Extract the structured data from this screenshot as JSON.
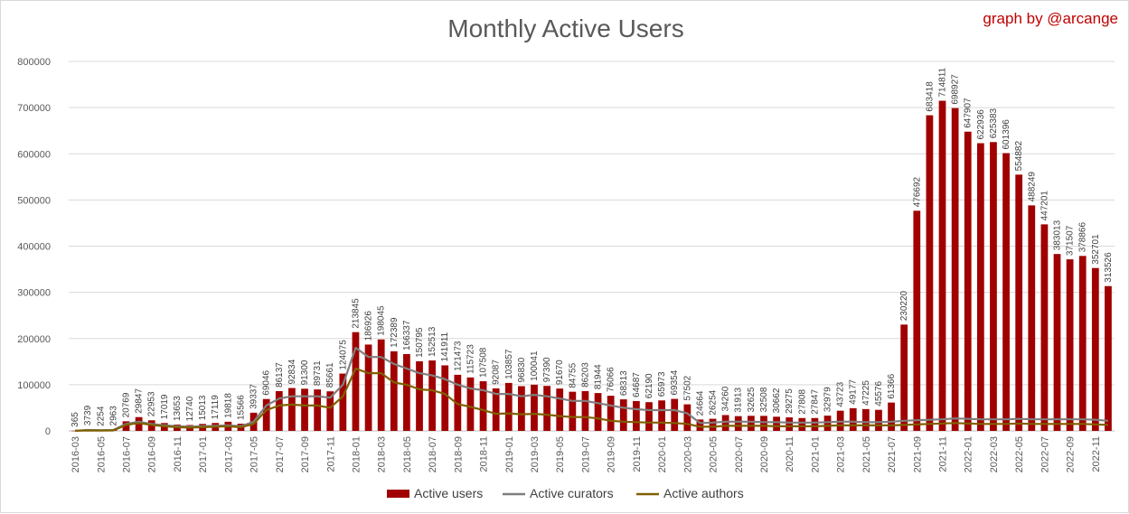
{
  "chart_data": {
    "type": "bar",
    "title": "Monthly Active Users",
    "credit": "graph by @arcange",
    "xlabel": "",
    "ylabel": "",
    "ylim": [
      0,
      800000
    ],
    "yticks": [
      "0",
      "100000",
      "200000",
      "300000",
      "400000",
      "500000",
      "600000",
      "700000",
      "800000"
    ],
    "grid": true,
    "legend_position": "bottom",
    "categories": [
      "2016-03",
      "2016-04",
      "2016-05",
      "2016-06",
      "2016-07",
      "2016-08",
      "2016-09",
      "2016-10",
      "2016-11",
      "2016-12",
      "2017-01",
      "2017-02",
      "2017-03",
      "2017-04",
      "2017-05",
      "2017-06",
      "2017-07",
      "2017-08",
      "2017-09",
      "2017-10",
      "2017-11",
      "2017-12",
      "2018-01",
      "2018-02",
      "2018-03",
      "2018-04",
      "2018-05",
      "2018-06",
      "2018-07",
      "2018-08",
      "2018-09",
      "2018-10",
      "2018-11",
      "2018-12",
      "2019-01",
      "2019-02",
      "2019-03",
      "2019-04",
      "2019-05",
      "2019-06",
      "2019-07",
      "2019-08",
      "2019-09",
      "2019-10",
      "2019-11",
      "2019-12",
      "2020-01",
      "2020-02",
      "2020-03",
      "2020-04",
      "2020-05",
      "2020-06",
      "2020-07",
      "2020-08",
      "2020-09",
      "2020-10",
      "2020-11",
      "2020-12",
      "2021-01",
      "2021-02",
      "2021-03",
      "2021-04",
      "2021-05",
      "2021-06",
      "2021-07",
      "2021-08",
      "2021-09",
      "2021-10",
      "2021-11",
      "2021-12",
      "2022-01",
      "2022-02",
      "2022-03",
      "2022-04",
      "2022-05",
      "2022-06",
      "2022-07",
      "2022-08",
      "2022-09",
      "2022-10",
      "2022-11",
      "2022-12"
    ],
    "tick_labels": [
      "2016-03",
      "2016-05",
      "2016-07",
      "2016-09",
      "2016-11",
      "2017-01",
      "2017-03",
      "2017-05",
      "2017-07",
      "2017-09",
      "2017-11",
      "2018-01",
      "2018-03",
      "2018-05",
      "2018-07",
      "2018-09",
      "2018-11",
      "2019-01",
      "2019-03",
      "2019-05",
      "2019-07",
      "2019-09",
      "2019-11",
      "2020-01",
      "2020-03",
      "2020-05",
      "2020-07",
      "2020-09",
      "2020-11",
      "2021-01",
      "2021-03",
      "2021-05",
      "2021-07",
      "2021-09",
      "2021-11",
      "2022-01",
      "2022-03",
      "2022-05",
      "2022-07",
      "2022-09",
      "2022-11"
    ],
    "series": [
      {
        "name": "Active users",
        "kind": "bar",
        "color": "#a00000",
        "values": [
          365,
          3739,
          2254,
          2963,
          20769,
          29847,
          22953,
          17019,
          13653,
          12740,
          15013,
          17119,
          19818,
          15566,
          39337,
          69046,
          86137,
          92834,
          91300,
          89731,
          85661,
          124075,
          213845,
          186926,
          198045,
          172389,
          166337,
          150795,
          152513,
          141911,
          121473,
          115723,
          107508,
          92087,
          103857,
          96830,
          100041,
          97390,
          91670,
          84755,
          86203,
          81944,
          76066,
          68313,
          64687,
          62190,
          65973,
          69354,
          57502,
          24664,
          26254,
          34260,
          31913,
          32625,
          32508,
          30662,
          29275,
          27808,
          27847,
          32979,
          43723,
          49177,
          47225,
          45576,
          61366,
          230220,
          476692,
          683418,
          714811,
          698927,
          647907,
          622936,
          625383,
          601396,
          554882,
          488249,
          447201,
          383013,
          371507,
          378866,
          352701,
          313526
        ]
      },
      {
        "name": "Active curators",
        "kind": "line",
        "color": "#7f7f7f",
        "values": [
          300,
          2000,
          1500,
          2000,
          15000,
          20000,
          15000,
          12000,
          10000,
          9000,
          10000,
          11000,
          12000,
          10000,
          20000,
          55000,
          70000,
          75000,
          75000,
          75000,
          72000,
          100000,
          180000,
          160000,
          160000,
          145000,
          135000,
          125000,
          120000,
          112000,
          100000,
          92000,
          88000,
          80000,
          80000,
          75000,
          78000,
          75000,
          70000,
          65000,
          65000,
          60000,
          55000,
          50000,
          47000,
          45000,
          45000,
          45000,
          38000,
          17000,
          18000,
          20000,
          20000,
          20000,
          19000,
          19000,
          18000,
          18000,
          18000,
          19000,
          20000,
          20000,
          19000,
          19000,
          20000,
          22000,
          23000,
          24000,
          25000,
          27000,
          26000,
          25000,
          25000,
          25000,
          26000,
          25000,
          25000,
          25000,
          25000,
          25000,
          24000,
          22000
        ]
      },
      {
        "name": "Active authors",
        "kind": "line",
        "color": "#7f6000",
        "values": [
          200,
          1000,
          800,
          1000,
          13000,
          17000,
          13000,
          10000,
          8000,
          7000,
          8000,
          9000,
          10000,
          8000,
          15000,
          45000,
          55000,
          57000,
          55000,
          55000,
          50000,
          75000,
          135000,
          125000,
          125000,
          105000,
          100000,
          90000,
          88000,
          80000,
          58000,
          52000,
          45000,
          37000,
          38000,
          36000,
          37000,
          35000,
          32000,
          30000,
          30000,
          27000,
          22000,
          20000,
          19000,
          18000,
          18000,
          17000,
          15000,
          9000,
          9000,
          11000,
          11000,
          11000,
          11000,
          10000,
          10000,
          10000,
          10000,
          11000,
          12000,
          12000,
          12000,
          12000,
          12000,
          13000,
          14000,
          15000,
          16000,
          17000,
          16000,
          15000,
          15000,
          15000,
          16000,
          15000,
          15000,
          15000,
          15000,
          15000,
          14000,
          13000
        ]
      }
    ]
  }
}
